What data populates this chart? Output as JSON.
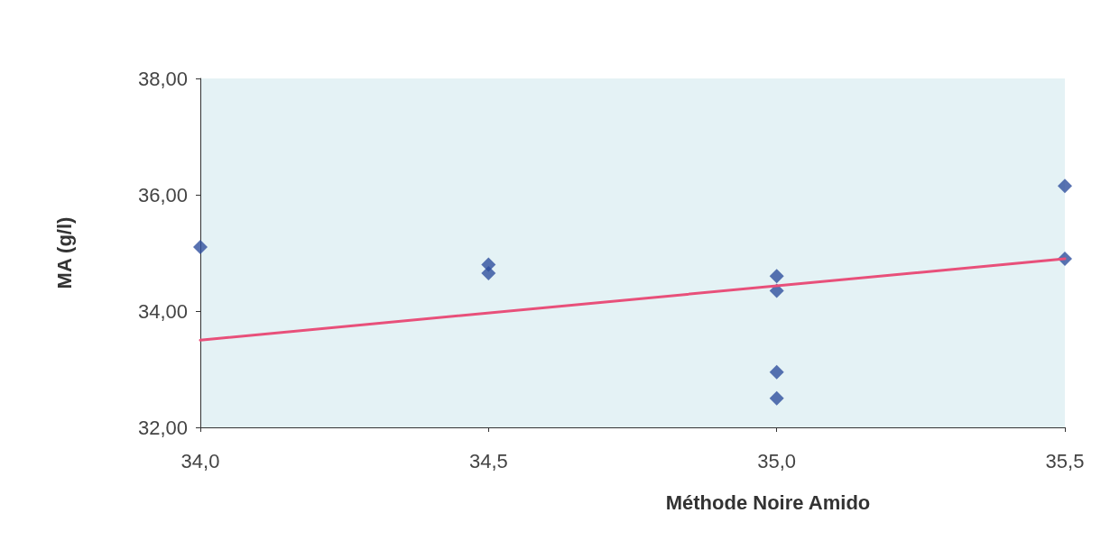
{
  "chart_data": {
    "type": "scatter",
    "xlabel": "Méthode Noire Amido",
    "ylabel": "MA (g/l)",
    "series": [
      {
        "color": "#2e4f9e",
        "marker": "diamond",
        "x": [
          34.0,
          34.5,
          34.5,
          35.0,
          35.0,
          35.0,
          35.0,
          35.5,
          35.5
        ],
        "values": [
          35.1,
          34.8,
          34.65,
          34.6,
          34.35,
          32.95,
          32.5,
          36.15,
          34.9
        ]
      },
      {
        "type": "line",
        "color": "#e8507a",
        "marker": "none",
        "line_style": "solid",
        "x": [
          34.0,
          35.5
        ],
        "values": [
          33.5,
          34.9
        ]
      }
    ],
    "xlim": [
      34.0,
      35.5
    ],
    "xticks": [
      {
        "value": 34.0,
        "label": "34,0"
      },
      {
        "value": 34.5,
        "label": "34,5"
      },
      {
        "value": 35.0,
        "label": "35,0"
      },
      {
        "value": 35.5,
        "label": "35,5"
      }
    ],
    "ylim": [
      32,
      38
    ],
    "yticks": [
      {
        "value": 32,
        "label": "32,00"
      },
      {
        "value": 34,
        "label": "34,00"
      },
      {
        "value": 36,
        "label": "36,00"
      },
      {
        "value": 38,
        "label": "38,00"
      }
    ],
    "grid": false
  }
}
